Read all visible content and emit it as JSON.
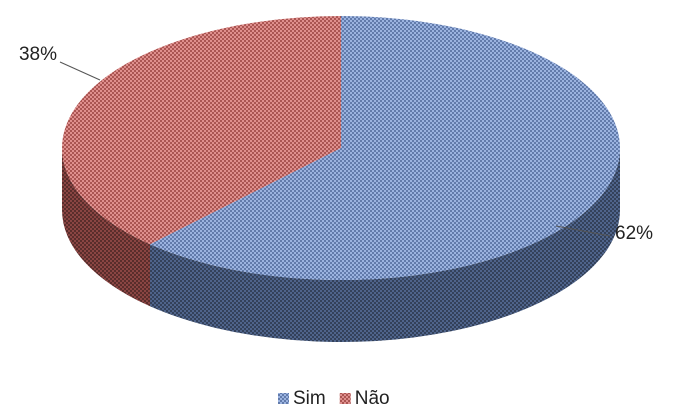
{
  "chart_data": {
    "type": "pie",
    "categories": [
      "Sim",
      "Não"
    ],
    "values": [
      62,
      38
    ],
    "value_labels": [
      "62%",
      "38%"
    ],
    "colors": [
      "#7a9ad6",
      "#d46a67"
    ],
    "legend": "bottom"
  }
}
